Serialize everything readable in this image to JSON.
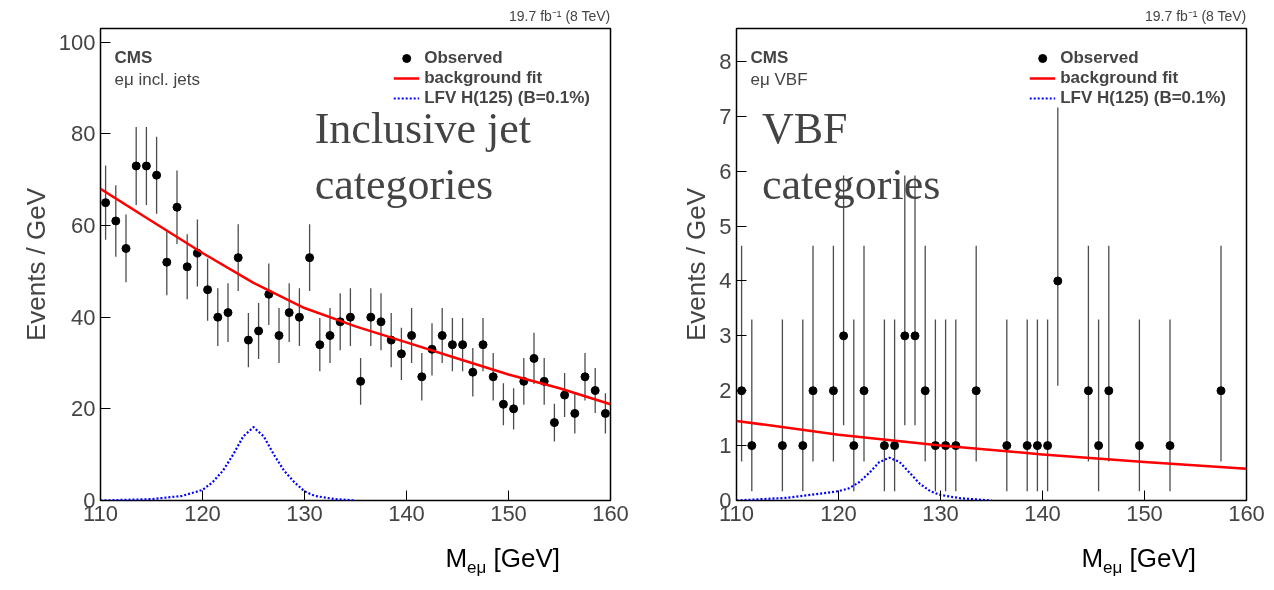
{
  "chart_data": [
    {
      "type": "scatter",
      "xlabel": "M$_{eμ}$ [GeV]",
      "ylabel": "Events / GeV",
      "annotations": [
        "19.7 fb⁻¹ (8 TeV)",
        "CMS",
        "eμ incl. jets",
        "Inclusive jet categories"
      ],
      "xlim": [
        110,
        160
      ],
      "ylim": [
        0,
        103
      ],
      "xticks": [
        110,
        120,
        130,
        140,
        150,
        160
      ],
      "yticks": [
        0,
        20,
        40,
        60,
        80,
        100
      ],
      "grid": false,
      "legend": "top right",
      "series": [
        {
          "name": "Observed",
          "marker": "circle",
          "color": "#000000",
          "x": [
            110.5,
            111.5,
            112.5,
            113.5,
            114.5,
            115.5,
            116.5,
            117.5,
            118.5,
            119.5,
            120.5,
            121.5,
            122.5,
            123.5,
            124.5,
            125.5,
            126.5,
            127.5,
            128.5,
            129.5,
            130.5,
            131.5,
            132.5,
            133.5,
            134.5,
            135.5,
            136.5,
            137.5,
            138.5,
            139.5,
            140.5,
            141.5,
            142.5,
            143.5,
            144.5,
            145.5,
            146.5,
            147.5,
            148.5,
            149.5,
            150.5,
            151.5,
            152.5,
            153.5,
            154.5,
            155.5,
            156.5,
            157.5,
            158.5,
            159.5
          ],
          "values": [
            65,
            61,
            55,
            73,
            73,
            71,
            52,
            64,
            51,
            54,
            46,
            40,
            41,
            53,
            35,
            37,
            45,
            36,
            41,
            40,
            53,
            34,
            36,
            39,
            40,
            26,
            40,
            39,
            35,
            32,
            36,
            27,
            33,
            36,
            34,
            34,
            28,
            34,
            27,
            21,
            20,
            26,
            31,
            26,
            17,
            23,
            19,
            27,
            24,
            19
          ],
          "errors": [
            8.1,
            7.8,
            7.4,
            8.5,
            8.5,
            8.4,
            7.2,
            8,
            7.1,
            7.3,
            6.8,
            6.3,
            6.4,
            7.3,
            5.9,
            6.1,
            6.7,
            6,
            6.4,
            6.3,
            7.3,
            5.8,
            6,
            6.2,
            6.3,
            5.1,
            6.3,
            6.2,
            5.9,
            5.7,
            6,
            5.2,
            5.7,
            6,
            5.8,
            5.8,
            5.3,
            5.8,
            5.2,
            4.6,
            4.5,
            5.1,
            5.6,
            5.1,
            4.1,
            4.8,
            4.4,
            5.2,
            4.9,
            4.4
          ]
        },
        {
          "name": "background fit",
          "type": "line",
          "line_style": "solid",
          "color": "#ff0000",
          "x": [
            110,
            115,
            120,
            125,
            130,
            135,
            140,
            145,
            150,
            155,
            160
          ],
          "values": [
            68,
            61,
            54,
            47.5,
            42,
            38,
            34.5,
            31,
            27.5,
            24.5,
            21
          ]
        },
        {
          "name": "LFV H(125) (B=0.1%)",
          "type": "line",
          "line_style": "dotted",
          "color": "#0000ff",
          "x": [
            110,
            115,
            118,
            120,
            121,
            122,
            123,
            124,
            125,
            126,
            127,
            128,
            129,
            130,
            131,
            133,
            135
          ],
          "values": [
            0,
            0.3,
            1,
            2.3,
            4,
            6.5,
            10,
            14,
            16,
            14,
            10,
            6.5,
            4,
            2,
            1,
            0.3,
            0
          ]
        }
      ]
    },
    {
      "type": "scatter",
      "xlabel": "M$_{eμ}$ [GeV]",
      "ylabel": "Events / GeV",
      "annotations": [
        "19.7 fb⁻¹ (8 TeV)",
        "CMS",
        "eμ VBF",
        "VBF categories"
      ],
      "xlim": [
        110,
        160
      ],
      "ylim": [
        0,
        8.6
      ],
      "xticks": [
        110,
        120,
        130,
        140,
        150,
        160
      ],
      "yticks": [
        0,
        1,
        2,
        3,
        4,
        5,
        6,
        7,
        8
      ],
      "grid": false,
      "legend": "top right",
      "series": [
        {
          "name": "Observed",
          "marker": "circle",
          "color": "#000000",
          "x": [
            110.5,
            111.5,
            114.5,
            116.5,
            117.5,
            119.5,
            120.5,
            121.5,
            122.5,
            124.5,
            125.5,
            126.5,
            127.5,
            128.5,
            129.5,
            130.5,
            131.5,
            133.5,
            136.5,
            138.5,
            139.5,
            140.5,
            141.5,
            144.5,
            145.5,
            146.5,
            149.5,
            152.5,
            157.5
          ],
          "values": [
            2,
            1,
            1,
            1,
            2,
            2,
            3,
            1,
            2,
            1,
            1,
            3,
            3,
            2,
            1,
            1,
            1,
            2,
            1,
            1,
            1,
            1,
            4,
            2,
            1,
            2,
            1,
            1,
            2
          ],
          "errors": [
            [
              0.71,
              4.64
            ],
            [
              0.17,
              3.3
            ],
            [
              0.17,
              3.3
            ],
            [
              0.17,
              3.3
            ],
            [
              0.71,
              4.64
            ],
            [
              0.71,
              4.64
            ],
            [
              1.37,
              5.92
            ],
            [
              0.17,
              3.3
            ],
            [
              0.71,
              4.64
            ],
            [
              0.17,
              3.3
            ],
            [
              0.17,
              3.3
            ],
            [
              1.37,
              5.92
            ],
            [
              1.37,
              5.92
            ],
            [
              0.71,
              4.64
            ],
            [
              0.17,
              3.3
            ],
            [
              0.17,
              3.3
            ],
            [
              0.17,
              3.3
            ],
            [
              0.71,
              4.64
            ],
            [
              0.17,
              3.3
            ],
            [
              0.17,
              3.3
            ],
            [
              0.17,
              3.3
            ],
            [
              0.17,
              3.3
            ],
            [
              2.09,
              7.16
            ],
            [
              0.71,
              4.64
            ],
            [
              0.17,
              3.3
            ],
            [
              0.71,
              4.64
            ],
            [
              0.17,
              3.3
            ],
            [
              0.17,
              3.3
            ],
            [
              0.71,
              4.64
            ]
          ]
        },
        {
          "name": "background fit",
          "type": "line",
          "line_style": "solid",
          "color": "#ff0000",
          "x": [
            110,
            120,
            130,
            140,
            150,
            160
          ],
          "values": [
            1.45,
            1.2,
            1.0,
            0.84,
            0.7,
            0.58
          ]
        },
        {
          "name": "LFV H(125) (B=0.1%)",
          "type": "line",
          "line_style": "dotted",
          "color": "#0000ff",
          "x": [
            110,
            115,
            118,
            120,
            121,
            122,
            123,
            124,
            125,
            126,
            127,
            128,
            129,
            130,
            132,
            135
          ],
          "values": [
            0,
            0.05,
            0.12,
            0.17,
            0.22,
            0.33,
            0.5,
            0.7,
            0.78,
            0.7,
            0.5,
            0.3,
            0.17,
            0.1,
            0.04,
            0
          ]
        }
      ]
    }
  ]
}
